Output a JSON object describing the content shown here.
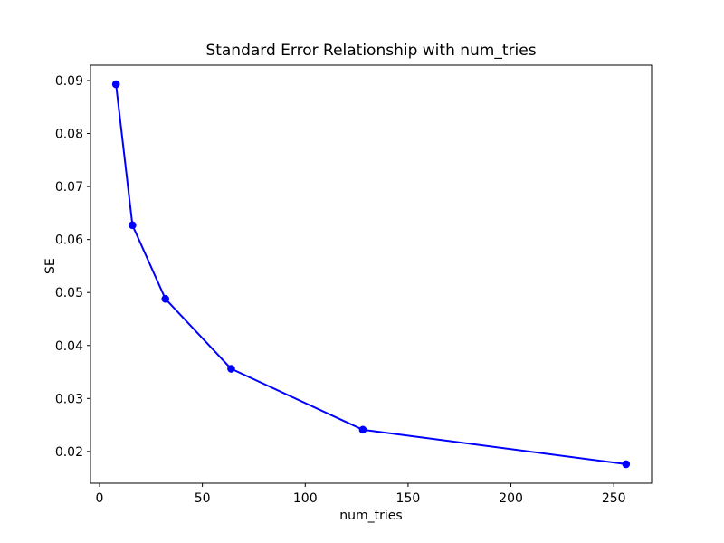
{
  "chart_data": {
    "type": "line",
    "title": "Standard Error Relationship with num_tries",
    "xlabel": "num_tries",
    "ylabel": "SE",
    "series": [
      {
        "name": "SE",
        "x": [
          8,
          16,
          32,
          64,
          128,
          256
        ],
        "y": [
          0.0893,
          0.0627,
          0.0488,
          0.0356,
          0.0241,
          0.0176
        ],
        "color": "#0000ff",
        "marker": "circle"
      }
    ],
    "xticks": [
      "0",
      "50",
      "100",
      "150",
      "200",
      "250"
    ],
    "yticks": [
      "0.02",
      "0.03",
      "0.04",
      "0.05",
      "0.06",
      "0.07",
      "0.08",
      "0.09"
    ],
    "xlim": [
      -4.4,
      268.4
    ],
    "ylim": [
      0.014,
      0.0929
    ],
    "grid": false,
    "legend": "none",
    "background_color": "#ffffff",
    "axis_color": "#000000"
  }
}
